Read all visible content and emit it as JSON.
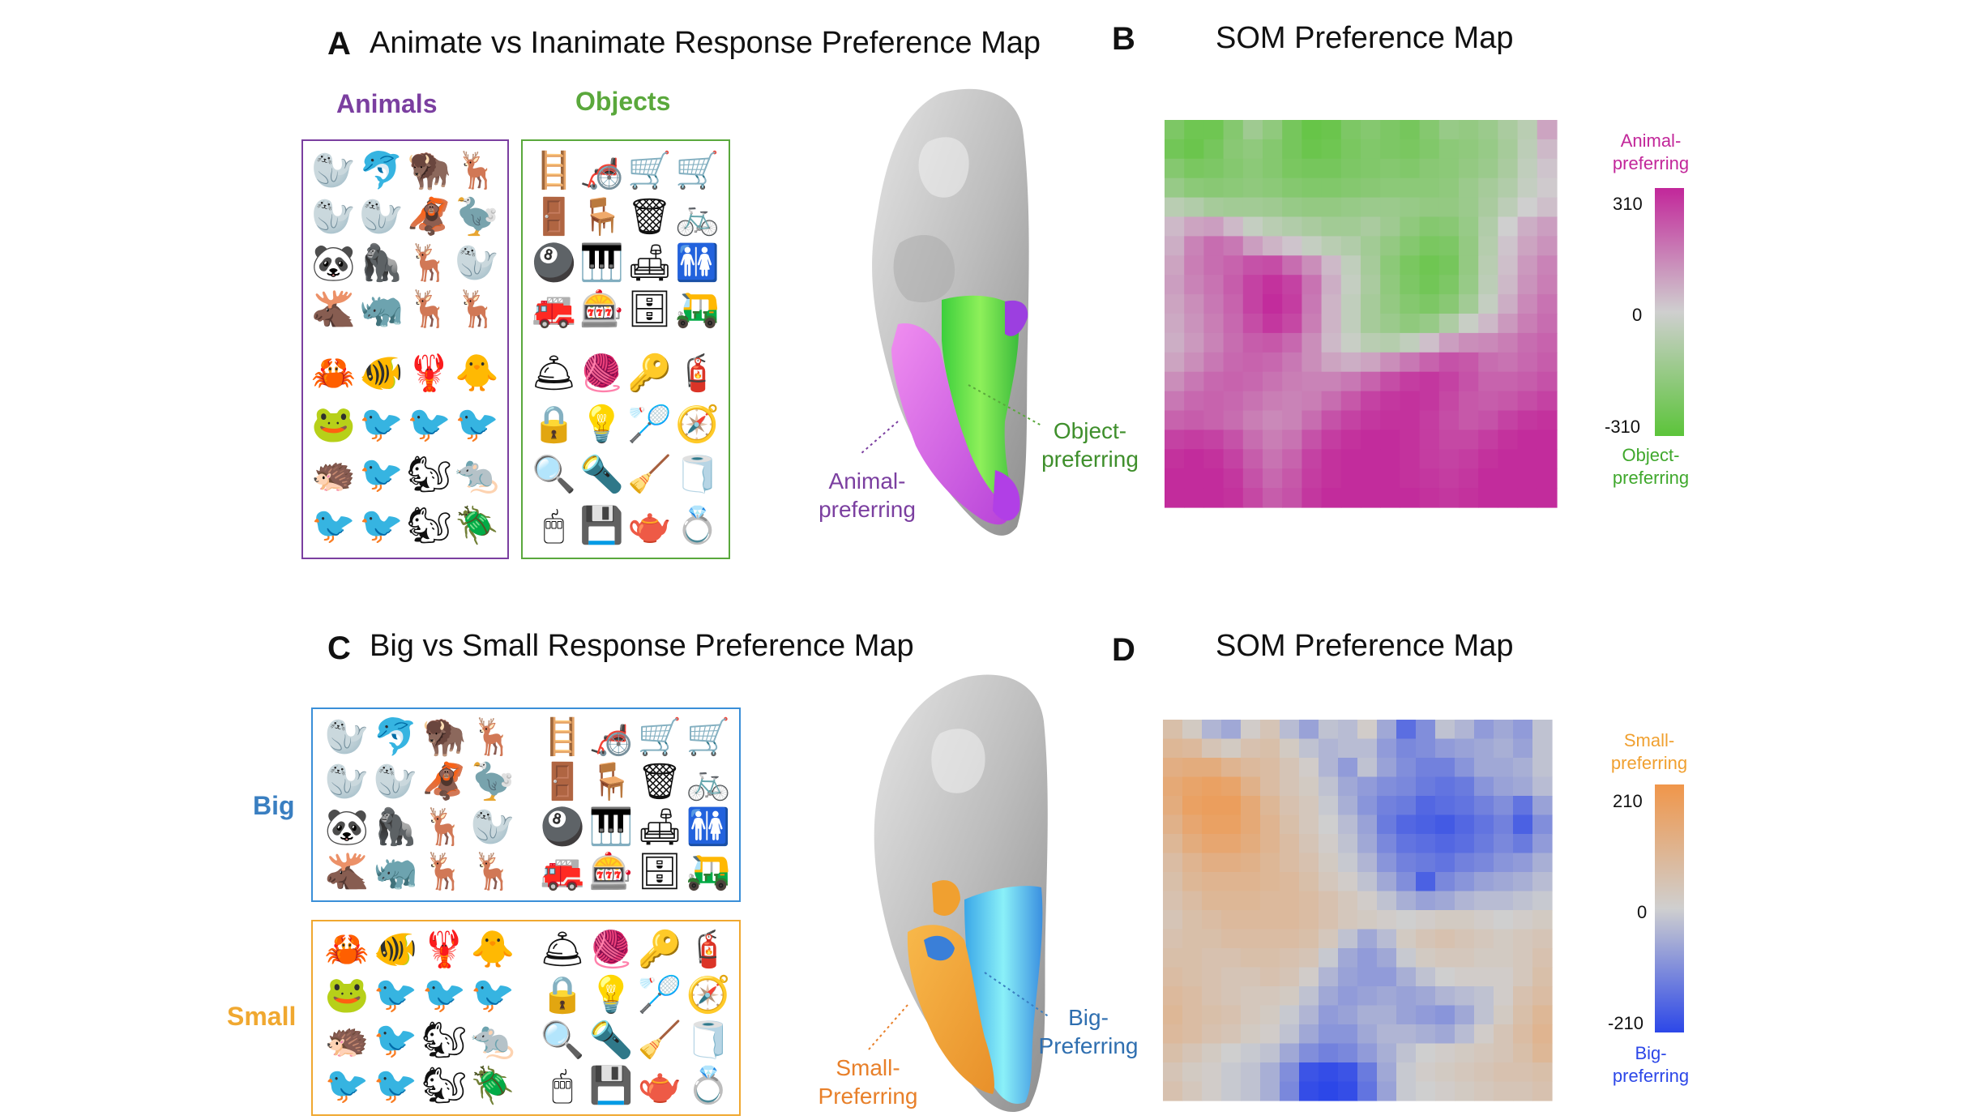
{
  "panelA": {
    "letter": "A",
    "title": "Animate vs Inanimate Response Preference Map",
    "animals_label": "Animals",
    "objects_label": "Objects",
    "callout_object": [
      "Object-",
      "preferring"
    ],
    "callout_animal": [
      "Animal-",
      "preferring"
    ]
  },
  "panelB": {
    "letter": "B",
    "title": "SOM Preference Map",
    "colorbar_top": [
      "Animal-",
      "preferring"
    ],
    "colorbar_bottom": [
      "Object-",
      "preferring"
    ],
    "ticks": [
      "310",
      "0",
      "-310"
    ]
  },
  "panelC": {
    "letter": "C",
    "title": "Big vs Small Response Preference Map",
    "big_label": "Big",
    "small_label": "Small",
    "callout_big": [
      "Big-",
      "Preferring"
    ],
    "callout_small": [
      "Small-",
      "Preferring"
    ]
  },
  "panelD": {
    "letter": "D",
    "title": "SOM Preference Map",
    "colorbar_top": [
      "Small-",
      "preferring"
    ],
    "colorbar_bottom": [
      "Big-",
      "preferring"
    ],
    "ticks": [
      "210",
      "0",
      "-210"
    ]
  },
  "colors": {
    "animal": "#7b3fa0",
    "object": "#5aa83c",
    "big": "#3a7fc1",
    "small": "#f0a830",
    "magenta": "#c2279a",
    "green": "#5cc43a",
    "orange": "#f0964a",
    "blue": "#2c47e8",
    "grey_mid": "#cfcfcf"
  },
  "icons": {
    "animals_big": [
      "🦭",
      "🐬",
      "🦬",
      "🦌",
      "🦭",
      "🦭",
      "🦧",
      "🦤",
      "🐼",
      "🦍",
      "🦌",
      "🦭",
      "🫎",
      "🦏",
      "🦌",
      "🦌"
    ],
    "animals_small": [
      "🦀",
      "🐠",
      "🦞",
      "🐥",
      "🐸",
      "🐦",
      "🐦",
      "🐦",
      "🦔",
      "🐦",
      "🐿",
      "🐀",
      "🐦",
      "🐦",
      "🐿",
      "🪲"
    ],
    "objects_big": [
      "🪜",
      "🦽",
      "🛒",
      "🛒",
      "🚪",
      "🪑",
      "🗑",
      "🚲",
      "🎱",
      "🎹",
      "🛋",
      "🚻",
      "🚒",
      "🎰",
      "🗄",
      "🛺"
    ],
    "objects_small": [
      "🛎",
      "🧶",
      "🔑",
      "🧯",
      "🔒",
      "💡",
      "🏸",
      "🧭",
      "🔍",
      "🔦",
      "🧹",
      "🧻",
      "🖱",
      "💾",
      "🫖",
      "💍"
    ]
  },
  "chart_data": [
    {
      "type": "heatmap",
      "title": "SOM Preference Map",
      "colorbar_range": [
        -310,
        310
      ],
      "colorbar_ticks": [
        310,
        0,
        -310
      ],
      "colorbar_high_label": "Animal-preferring",
      "colorbar_low_label": "Object-preferring",
      "grid_rows": 20,
      "grid_cols": 20,
      "values": [
        [
          -220,
          -260,
          -260,
          -200,
          -130,
          -170,
          -240,
          -280,
          -270,
          -220,
          -200,
          -220,
          -240,
          -200,
          -150,
          -160,
          -140,
          -100,
          -60,
          80
        ],
        [
          -250,
          -270,
          -240,
          -190,
          -170,
          -200,
          -240,
          -270,
          -260,
          -230,
          -210,
          -220,
          -230,
          -210,
          -180,
          -170,
          -150,
          -110,
          -50,
          40
        ],
        [
          -200,
          -230,
          -220,
          -200,
          -180,
          -200,
          -230,
          -240,
          -240,
          -220,
          -210,
          -200,
          -210,
          -190,
          -180,
          -160,
          -140,
          -100,
          -40,
          20
        ],
        [
          -150,
          -180,
          -190,
          -180,
          -170,
          -180,
          -200,
          -210,
          -210,
          -200,
          -190,
          -180,
          -180,
          -180,
          -170,
          -140,
          -110,
          -80,
          -30,
          10
        ],
        [
          -60,
          -80,
          -110,
          -120,
          -120,
          -130,
          -150,
          -160,
          -160,
          -150,
          -140,
          -140,
          -150,
          -160,
          -160,
          -140,
          -100,
          -50,
          0,
          30
        ],
        [
          40,
          80,
          90,
          40,
          -30,
          -60,
          -80,
          -100,
          -120,
          -120,
          -100,
          -130,
          -170,
          -200,
          -190,
          -150,
          -80,
          0,
          60,
          90
        ],
        [
          60,
          140,
          180,
          160,
          90,
          50,
          20,
          -30,
          -60,
          -80,
          -120,
          -160,
          -200,
          -230,
          -220,
          -160,
          -70,
          20,
          80,
          110
        ],
        [
          80,
          150,
          180,
          200,
          230,
          240,
          180,
          120,
          40,
          -40,
          -110,
          -180,
          -230,
          -260,
          -240,
          -160,
          -60,
          30,
          100,
          140
        ],
        [
          90,
          140,
          170,
          210,
          260,
          290,
          260,
          170,
          60,
          -30,
          -100,
          -170,
          -220,
          -250,
          -220,
          -150,
          -50,
          40,
          110,
          150
        ],
        [
          80,
          120,
          160,
          200,
          260,
          300,
          270,
          160,
          50,
          -40,
          -110,
          -160,
          -200,
          -220,
          -190,
          -120,
          -30,
          60,
          130,
          170
        ],
        [
          70,
          110,
          150,
          190,
          240,
          280,
          250,
          150,
          50,
          -40,
          -110,
          -140,
          -170,
          -150,
          -90,
          -20,
          40,
          100,
          150,
          180
        ],
        [
          60,
          100,
          140,
          180,
          210,
          220,
          190,
          120,
          40,
          -20,
          -60,
          -70,
          -40,
          30,
          90,
          120,
          130,
          150,
          180,
          200
        ],
        [
          80,
          120,
          160,
          190,
          200,
          190,
          160,
          120,
          80,
          60,
          80,
          120,
          160,
          200,
          230,
          220,
          180,
          170,
          190,
          210
        ],
        [
          120,
          160,
          190,
          200,
          190,
          170,
          150,
          140,
          140,
          160,
          200,
          240,
          270,
          280,
          260,
          230,
          200,
          200,
          210,
          230
        ],
        [
          160,
          190,
          200,
          190,
          170,
          150,
          140,
          150,
          180,
          220,
          260,
          280,
          290,
          280,
          250,
          220,
          210,
          220,
          240,
          260
        ],
        [
          200,
          210,
          200,
          180,
          150,
          130,
          140,
          180,
          230,
          260,
          280,
          290,
          290,
          270,
          240,
          220,
          230,
          260,
          280,
          290
        ],
        [
          260,
          270,
          260,
          230,
          180,
          150,
          170,
          230,
          270,
          290,
          300,
          300,
          290,
          270,
          250,
          250,
          270,
          290,
          300,
          300
        ],
        [
          290,
          300,
          290,
          260,
          210,
          170,
          200,
          260,
          290,
          300,
          300,
          300,
          290,
          270,
          260,
          270,
          290,
          300,
          300,
          300
        ],
        [
          300,
          300,
          300,
          280,
          230,
          190,
          220,
          270,
          290,
          300,
          300,
          300,
          290,
          280,
          270,
          280,
          300,
          300,
          300,
          300
        ],
        [
          300,
          300,
          300,
          290,
          250,
          210,
          230,
          280,
          300,
          300,
          300,
          300,
          300,
          290,
          280,
          290,
          300,
          300,
          300,
          300
        ]
      ]
    },
    {
      "type": "heatmap",
      "title": "SOM Preference Map",
      "colorbar_range": [
        -210,
        210
      ],
      "colorbar_ticks": [
        210,
        0,
        -210
      ],
      "colorbar_high_label": "Small-preferring",
      "colorbar_low_label": "Big-preferring",
      "grid_rows": 20,
      "grid_cols": 20,
      "values": [
        [
          60,
          20,
          -40,
          -60,
          10,
          40,
          -30,
          -70,
          -20,
          -30,
          10,
          -60,
          -150,
          -100,
          -20,
          -40,
          -80,
          -60,
          -80,
          -20
        ],
        [
          90,
          80,
          40,
          20,
          50,
          60,
          20,
          -20,
          -40,
          -30,
          -30,
          -80,
          -110,
          -100,
          -80,
          -70,
          -60,
          -50,
          -70,
          -20
        ],
        [
          120,
          130,
          130,
          100,
          80,
          70,
          40,
          10,
          -40,
          -80,
          -20,
          -70,
          -100,
          -120,
          -120,
          -90,
          -60,
          -60,
          -50,
          -20
        ],
        [
          140,
          160,
          170,
          160,
          110,
          70,
          40,
          20,
          -20,
          -60,
          -80,
          -100,
          -110,
          -130,
          -140,
          -130,
          -90,
          -70,
          -60,
          -30
        ],
        [
          130,
          170,
          180,
          180,
          140,
          90,
          50,
          30,
          -10,
          -50,
          -90,
          -120,
          -130,
          -160,
          -150,
          -140,
          -120,
          -100,
          -140,
          -70
        ],
        [
          110,
          150,
          170,
          170,
          140,
          100,
          60,
          30,
          0,
          -30,
          -70,
          -130,
          -160,
          -170,
          -180,
          -160,
          -140,
          -120,
          -170,
          -100
        ],
        [
          90,
          130,
          150,
          150,
          130,
          100,
          70,
          40,
          10,
          -20,
          -60,
          -110,
          -140,
          -150,
          -160,
          -150,
          -130,
          -110,
          -130,
          -80
        ],
        [
          70,
          100,
          120,
          120,
          110,
          90,
          70,
          50,
          20,
          -10,
          -40,
          -90,
          -120,
          -130,
          -140,
          -120,
          -110,
          -90,
          -80,
          -50
        ],
        [
          60,
          90,
          100,
          100,
          100,
          90,
          80,
          60,
          30,
          10,
          -20,
          -60,
          -100,
          -170,
          -110,
          -90,
          -70,
          -60,
          -50,
          -30
        ],
        [
          50,
          70,
          90,
          90,
          90,
          80,
          80,
          70,
          50,
          30,
          10,
          -20,
          -50,
          -70,
          -60,
          -40,
          -30,
          -30,
          -20,
          -10
        ],
        [
          40,
          60,
          70,
          80,
          80,
          80,
          80,
          70,
          50,
          30,
          20,
          10,
          0,
          10,
          20,
          20,
          10,
          0,
          10,
          20
        ],
        [
          50,
          60,
          60,
          70,
          70,
          70,
          70,
          60,
          30,
          -20,
          -60,
          -30,
          20,
          40,
          50,
          40,
          30,
          20,
          30,
          40
        ],
        [
          60,
          60,
          50,
          50,
          60,
          60,
          50,
          40,
          -10,
          -60,
          -80,
          -60,
          -10,
          20,
          30,
          30,
          20,
          20,
          30,
          50
        ],
        [
          70,
          60,
          50,
          40,
          40,
          50,
          40,
          10,
          -40,
          -70,
          -80,
          -80,
          -50,
          -20,
          0,
          10,
          10,
          10,
          30,
          60
        ],
        [
          80,
          70,
          50,
          40,
          30,
          30,
          20,
          -20,
          -60,
          -80,
          -70,
          -60,
          -70,
          -60,
          -40,
          -30,
          -20,
          10,
          50,
          70
        ],
        [
          90,
          70,
          60,
          50,
          30,
          20,
          -10,
          -40,
          -80,
          -70,
          -50,
          -50,
          -70,
          -80,
          -90,
          -60,
          -20,
          20,
          60,
          90
        ],
        [
          80,
          70,
          50,
          40,
          20,
          10,
          -20,
          -60,
          -90,
          -90,
          -60,
          -40,
          -40,
          -50,
          -60,
          -30,
          10,
          40,
          70,
          100
        ],
        [
          60,
          40,
          20,
          0,
          -10,
          -20,
          -60,
          -100,
          -120,
          -110,
          -80,
          -50,
          -20,
          0,
          10,
          20,
          30,
          40,
          60,
          90
        ],
        [
          40,
          20,
          10,
          -10,
          -20,
          -50,
          -100,
          -190,
          -200,
          -190,
          -130,
          -60,
          -10,
          10,
          20,
          30,
          40,
          50,
          50,
          60
        ],
        [
          50,
          30,
          10,
          -10,
          -20,
          -50,
          -110,
          -200,
          -210,
          -200,
          -140,
          -70,
          -10,
          0,
          10,
          20,
          30,
          40,
          40,
          50
        ]
      ]
    }
  ]
}
